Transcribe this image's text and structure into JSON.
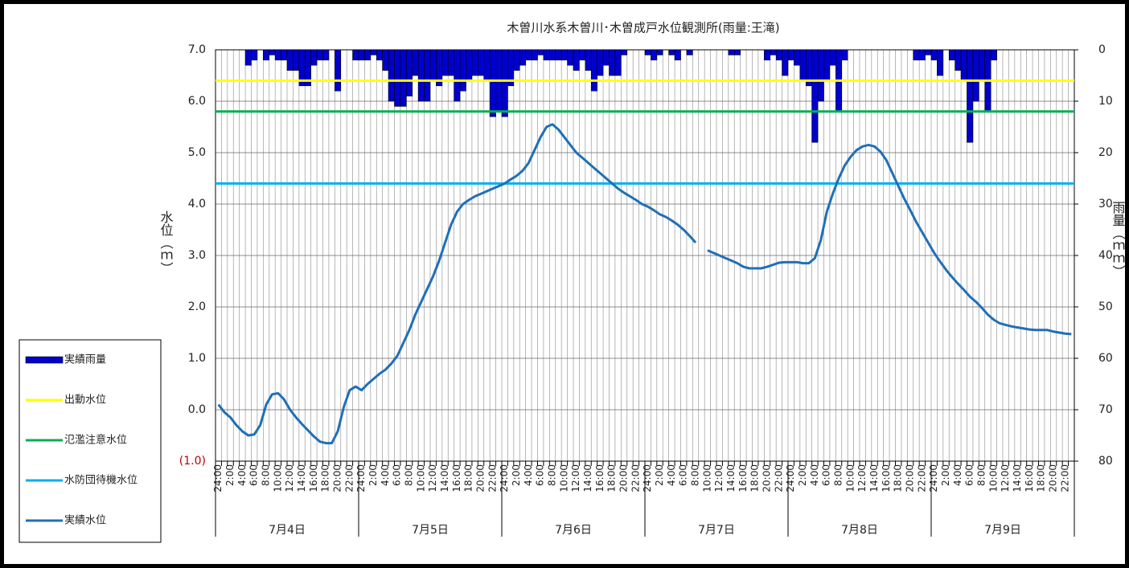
{
  "chart_data": {
    "type": "bar_line",
    "title": "木曽川水系木曽川･木曽成戸水位観測所(雨量:王滝)",
    "y_label": "水位（ｍ）",
    "y2_label": "雨量（ｍｍ）",
    "categories": [
      "24:00",
      null,
      "2:00",
      null,
      "4:00",
      null,
      "6:00",
      null,
      "8:00",
      null,
      "10:00",
      null,
      "12:00",
      null,
      "14:00",
      null,
      "16:00",
      null,
      "18:00",
      null,
      "20:00",
      null,
      "22:00",
      null,
      "24:00",
      null,
      "2:00",
      null,
      "4:00",
      null,
      "6:00",
      null,
      "8:00",
      null,
      "10:00",
      null,
      "12:00",
      null,
      "14:00",
      null,
      "16:00",
      null,
      "18:00",
      null,
      "20:00",
      null,
      "22:00",
      null,
      "24:00",
      null,
      "2:00",
      null,
      "4:00",
      null,
      "6:00",
      null,
      "8:00",
      null,
      "10:00",
      null,
      "12:00",
      null,
      "14:00",
      null,
      "16:00",
      null,
      "18:00",
      null,
      "20:00",
      null,
      "22:00",
      null,
      "24:00",
      null,
      "2:00",
      null,
      "4:00",
      null,
      "6:00",
      null,
      "8:00",
      null,
      "10:00",
      null,
      "12:00",
      null,
      "14:00",
      null,
      "16:00",
      null,
      "18:00",
      null,
      "20:00",
      null,
      "22:00",
      null,
      "24:00",
      null,
      "2:00",
      null,
      "4:00",
      null,
      "6:00",
      null,
      "8:00",
      null,
      "10:00",
      null,
      "12:00",
      null,
      "14:00",
      null,
      "16:00",
      null,
      "18:00",
      null,
      "20:00",
      null,
      "22:00",
      null,
      "24:00",
      null,
      "2:00",
      null,
      "4:00",
      null,
      "6:00",
      null,
      "8:00",
      null,
      "10:00",
      null,
      "12:00",
      null,
      "14:00",
      null,
      "16:00",
      null,
      "18:00",
      null,
      "20:00",
      null,
      "22:00",
      null
    ],
    "days": [
      "7月4日",
      "7月5日",
      "7月6日",
      "7月7日",
      "7月8日",
      "7月9日"
    ],
    "series": [
      {
        "name": "実績雨量",
        "kind": "bar",
        "axis": "y2",
        "color": "#0000cc",
        "values": [
          0,
          0,
          0,
          0,
          0,
          3,
          2,
          0,
          2,
          1,
          2,
          2,
          4,
          4,
          7,
          7,
          3,
          2,
          2,
          0,
          8,
          0,
          0,
          2,
          2,
          2,
          1,
          2,
          4,
          10,
          11,
          11,
          9,
          5,
          10,
          10,
          6,
          7,
          5,
          5,
          10,
          8,
          6,
          5,
          5,
          6,
          13,
          12,
          13,
          7,
          4,
          3,
          2,
          2,
          1,
          2,
          2,
          2,
          2,
          3,
          4,
          2,
          4,
          8,
          5,
          3,
          5,
          5,
          1,
          0,
          0,
          0,
          1,
          2,
          1,
          0,
          1,
          2,
          0,
          1,
          0,
          0,
          0,
          0,
          0,
          0,
          1,
          1,
          0,
          0,
          0,
          0,
          2,
          1,
          2,
          5,
          2,
          3,
          6,
          7,
          18,
          10,
          6,
          3,
          12,
          2,
          0,
          0,
          0,
          0,
          0,
          0,
          0,
          0,
          0,
          0,
          0,
          2,
          2,
          1,
          2,
          5,
          0,
          2,
          4,
          6,
          18,
          10,
          6,
          12,
          2,
          0,
          0,
          0,
          0,
          0,
          0,
          0,
          0,
          0,
          0,
          0,
          0,
          0
        ]
      },
      {
        "name": "出動水位",
        "kind": "hline",
        "color": "#ffff00",
        "value": 6.4
      },
      {
        "name": "氾濫注意水位",
        "kind": "hline",
        "color": "#00b050",
        "value": 5.8
      },
      {
        "name": "水防団待機水位",
        "kind": "hline",
        "color": "#00b0f0",
        "value": 4.4
      },
      {
        "name": "実績水位",
        "kind": "line",
        "color": "#1f6fb8",
        "values": [
          0.1,
          -0.05,
          -0.15,
          -0.3,
          -0.42,
          -0.5,
          -0.48,
          -0.3,
          0.1,
          0.3,
          0.32,
          0.2,
          0.0,
          -0.15,
          -0.28,
          -0.4,
          -0.52,
          -0.62,
          -0.65,
          -0.65,
          -0.42,
          0.05,
          0.38,
          0.45,
          0.38,
          0.5,
          0.6,
          0.7,
          0.78,
          0.9,
          1.05,
          1.3,
          1.55,
          1.85,
          2.1,
          2.35,
          2.6,
          2.9,
          3.25,
          3.6,
          3.85,
          4.0,
          4.08,
          4.15,
          4.2,
          4.25,
          4.3,
          4.35,
          4.4,
          4.48,
          4.55,
          4.65,
          4.8,
          5.05,
          5.3,
          5.5,
          5.55,
          5.45,
          5.3,
          5.15,
          5.0,
          4.9,
          4.8,
          4.7,
          4.6,
          4.5,
          4.4,
          4.3,
          4.22,
          4.15,
          4.08,
          4.0,
          3.95,
          3.88,
          3.8,
          3.75,
          3.68,
          3.6,
          3.5,
          3.38,
          3.25,
          null,
          3.1,
          3.05,
          3.0,
          2.95,
          2.9,
          2.85,
          2.78,
          2.75,
          2.75,
          2.75,
          2.78,
          2.82,
          2.86,
          2.87,
          2.87,
          2.87,
          2.85,
          2.85,
          2.95,
          3.3,
          3.85,
          4.2,
          4.5,
          4.75,
          4.92,
          5.05,
          5.12,
          5.15,
          5.12,
          5.02,
          4.85,
          4.6,
          4.35,
          4.1,
          3.88,
          3.65,
          3.45,
          3.25,
          3.05,
          2.88,
          2.72,
          2.58,
          2.45,
          2.33,
          2.2,
          2.1,
          1.98,
          1.85,
          1.75,
          1.68,
          1.65,
          1.62,
          1.6,
          1.58,
          1.56,
          1.55,
          1.55,
          1.55,
          1.52,
          1.5,
          1.48,
          1.47
        ]
      }
    ],
    "ylim": [
      -1,
      7
    ],
    "yticks": [
      {
        "value": -1,
        "label": "(1.0)"
      },
      {
        "value": 0,
        "label": "0.0"
      },
      {
        "value": 1,
        "label": "1.0"
      },
      {
        "value": 2,
        "label": "2.0"
      },
      {
        "value": 3,
        "label": "3.0"
      },
      {
        "value": 4,
        "label": "4.0"
      },
      {
        "value": 5,
        "label": "5.0"
      },
      {
        "value": 6,
        "label": "6.0"
      },
      {
        "value": 7,
        "label": "7.0"
      }
    ],
    "negative_tick_color": "#c00000",
    "y2lim": [
      80,
      0
    ],
    "y2ticks": [
      0,
      10,
      20,
      30,
      40,
      50,
      60,
      70,
      80
    ],
    "grid": true,
    "legend": "left"
  }
}
